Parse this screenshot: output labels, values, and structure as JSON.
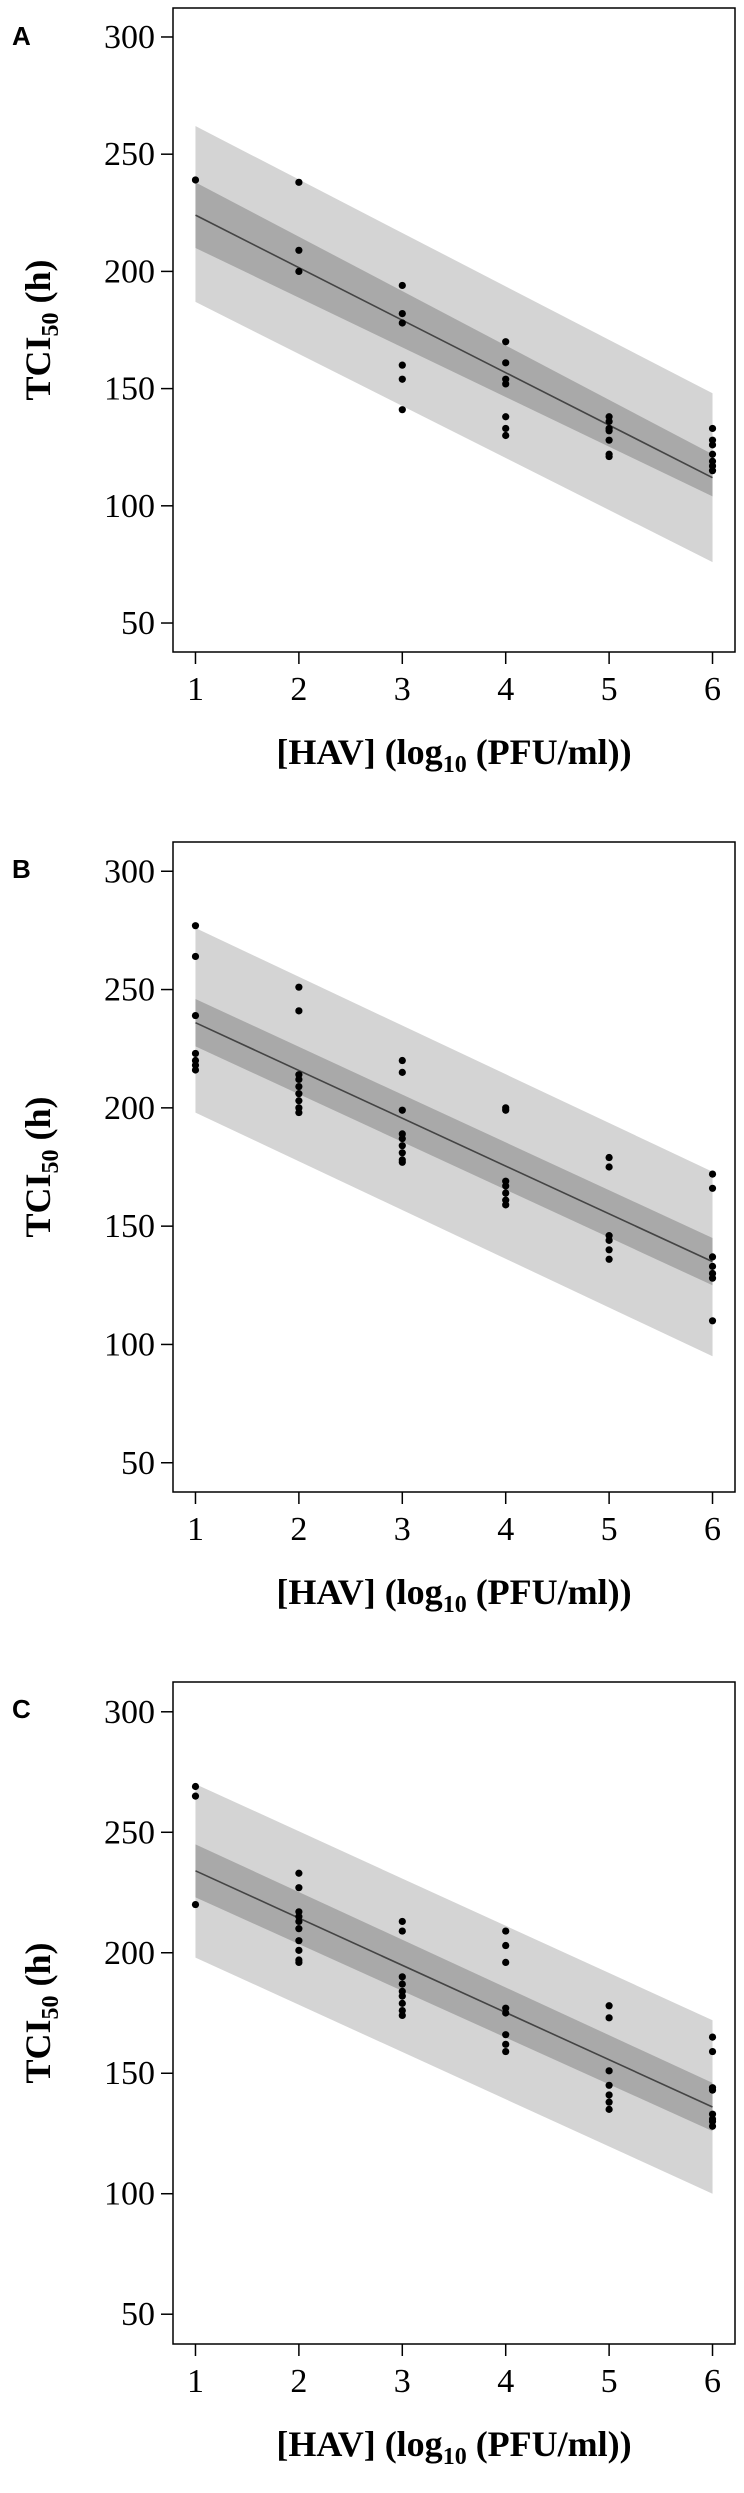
{
  "chart_data": [
    {
      "panel": "A",
      "type": "scatter",
      "xlabel_main": "[HAV] (log",
      "xlabel_sub": "10",
      "xlabel_tail": " (PFU/ml))",
      "ylabel_main": "TCI",
      "ylabel_sub": "50",
      "ylabel_tail": " (h)",
      "xlim": [
        1,
        6
      ],
      "ylim": [
        50,
        300
      ],
      "xticks": [
        "1",
        "2",
        "3",
        "4",
        "5",
        "6"
      ],
      "yticks": [
        "50",
        "100",
        "150",
        "200",
        "250",
        "300"
      ],
      "fit_line": {
        "x": [
          1,
          6
        ],
        "y": [
          224,
          112
        ]
      },
      "confidence_band": {
        "x": [
          1,
          6
        ],
        "lower": [
          210,
          104
        ],
        "upper": [
          238,
          122
        ]
      },
      "prediction_band": {
        "x": [
          1,
          6
        ],
        "lower": [
          187,
          76
        ],
        "upper": [
          262,
          148
        ]
      },
      "points": {
        "x": [
          1,
          2,
          2,
          2,
          3,
          3,
          3,
          3,
          3,
          3,
          4,
          4,
          4,
          4,
          4,
          4,
          4,
          5,
          5,
          5,
          5,
          5,
          5,
          5,
          6,
          6,
          6,
          6,
          6,
          6,
          6
        ],
        "y": [
          239,
          238,
          209,
          200,
          194,
          182,
          178,
          160,
          154,
          141,
          170,
          161,
          154,
          152,
          138,
          133,
          130,
          138,
          136,
          133,
          132,
          128,
          122,
          121,
          133,
          128,
          126,
          122,
          119,
          117,
          115
        ]
      }
    },
    {
      "panel": "B",
      "type": "scatter",
      "xlabel_main": "[HAV] (log",
      "xlabel_sub": "10",
      "xlabel_tail": " (PFU/ml))",
      "ylabel_main": "TCI",
      "ylabel_sub": "50",
      "ylabel_tail": " (h)",
      "xlim": [
        1,
        6
      ],
      "ylim": [
        50,
        300
      ],
      "xticks": [
        "1",
        "2",
        "3",
        "4",
        "5",
        "6"
      ],
      "yticks": [
        "50",
        "100",
        "150",
        "200",
        "250",
        "300"
      ],
      "fit_line": {
        "x": [
          1,
          6
        ],
        "y": [
          236,
          135
        ]
      },
      "confidence_band": {
        "x": [
          1,
          6
        ],
        "lower": [
          226,
          125
        ],
        "upper": [
          246,
          145
        ]
      },
      "prediction_band": {
        "x": [
          1,
          6
        ],
        "lower": [
          198,
          95
        ],
        "upper": [
          276,
          173
        ]
      },
      "points": {
        "x": [
          1,
          1,
          1,
          1,
          1,
          1,
          1,
          2,
          2,
          2,
          2,
          2,
          2,
          2,
          2,
          2,
          3,
          3,
          3,
          3,
          3,
          3,
          3,
          3,
          3,
          4,
          4,
          4,
          4,
          4,
          4,
          4,
          5,
          5,
          5,
          5,
          5,
          5,
          6,
          6,
          6,
          6,
          6,
          6,
          6
        ],
        "y": [
          277,
          264,
          239,
          223,
          220,
          218,
          216,
          251,
          241,
          214,
          212,
          209,
          206,
          203,
          200,
          198,
          220,
          215,
          199,
          189,
          187,
          184,
          181,
          178,
          177,
          200,
          199,
          169,
          167,
          164,
          161,
          159,
          179,
          175,
          146,
          144,
          140,
          136,
          172,
          166,
          137,
          133,
          130,
          128,
          110
        ]
      }
    },
    {
      "panel": "C",
      "type": "scatter",
      "xlabel_main": "[HAV] (log",
      "xlabel_sub": "10",
      "xlabel_tail": " (PFU/ml))",
      "ylabel_main": "TCI",
      "ylabel_sub": "50",
      "ylabel_tail": " (h)",
      "xlim": [
        1,
        6
      ],
      "ylim": [
        50,
        300
      ],
      "xticks": [
        "1",
        "2",
        "3",
        "4",
        "5",
        "6"
      ],
      "yticks": [
        "50",
        "100",
        "150",
        "200",
        "250",
        "300"
      ],
      "fit_line": {
        "x": [
          1,
          6
        ],
        "y": [
          234,
          136
        ]
      },
      "confidence_band": {
        "x": [
          1,
          6
        ],
        "lower": [
          223,
          126
        ],
        "upper": [
          245,
          146
        ]
      },
      "prediction_band": {
        "x": [
          1,
          6
        ],
        "lower": [
          198,
          100
        ],
        "upper": [
          270,
          172
        ]
      },
      "points": {
        "x": [
          1,
          1,
          1,
          2,
          2,
          2,
          2,
          2,
          2,
          2,
          2,
          2,
          2,
          3,
          3,
          3,
          3,
          3,
          3,
          3,
          3,
          3,
          4,
          4,
          4,
          4,
          4,
          4,
          4,
          4,
          5,
          5,
          5,
          5,
          5,
          5,
          5,
          6,
          6,
          6,
          6,
          6,
          6,
          6,
          6
        ],
        "y": [
          269,
          265,
          220,
          233,
          227,
          217,
          215,
          213,
          210,
          205,
          201,
          197,
          196,
          213,
          209,
          190,
          187,
          184,
          182,
          179,
          176,
          174,
          209,
          203,
          196,
          177,
          175,
          166,
          162,
          159,
          178,
          173,
          151,
          145,
          141,
          138,
          135,
          165,
          159,
          144,
          143,
          133,
          131,
          130,
          128
        ]
      }
    }
  ]
}
